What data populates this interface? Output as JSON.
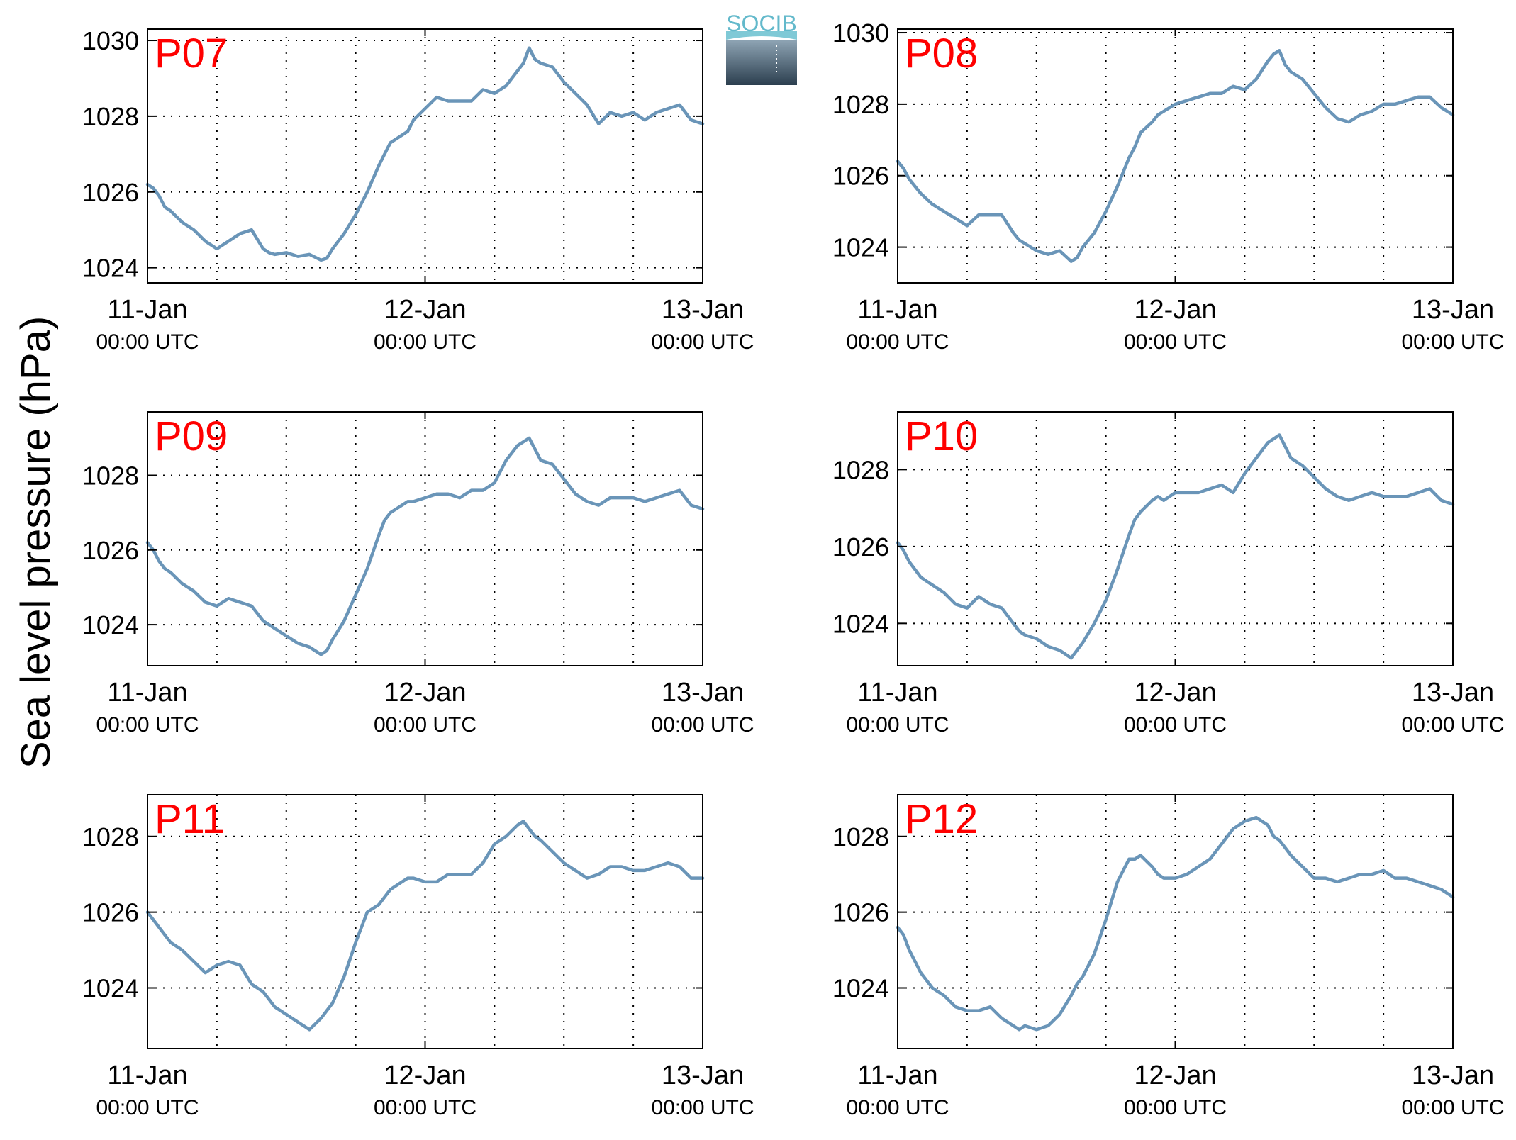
{
  "figure": {
    "ylabel": "Sea level pressure (hPa)",
    "logo_text": "SOCIB",
    "line_color": "#6a95b8",
    "label_color": "#ff0000"
  },
  "chart_data": [
    {
      "type": "line",
      "name": "P07",
      "x_ticks": [
        {
          "day": "11-Jan",
          "time": "00:00 UTC"
        },
        {
          "day": "12-Jan",
          "time": "00:00 UTC"
        },
        {
          "day": "13-Jan",
          "time": "00:00 UTC"
        }
      ],
      "xlim": [
        0,
        48
      ],
      "ylim": [
        1023.6,
        1030.3
      ],
      "y_ticks": [
        1024,
        1026,
        1028,
        1030
      ],
      "grid": true,
      "x": [
        0,
        0.5,
        1,
        1.5,
        2,
        3,
        4,
        5,
        6,
        7,
        8,
        9,
        10,
        10.5,
        11,
        12,
        13,
        14,
        15,
        15.5,
        16,
        17,
        18,
        19,
        20,
        20.5,
        21,
        22,
        22.5,
        23,
        24,
        25,
        26,
        27,
        28,
        29,
        30,
        31,
        32,
        32.5,
        33,
        33.5,
        34,
        35,
        36,
        37,
        38,
        39,
        40,
        41,
        42,
        43,
        44,
        45,
        46,
        47,
        48
      ],
      "y": [
        1026.2,
        1026.1,
        1025.9,
        1025.6,
        1025.5,
        1025.2,
        1025.0,
        1024.7,
        1024.5,
        1024.7,
        1024.9,
        1025.0,
        1024.5,
        1024.4,
        1024.35,
        1024.4,
        1024.3,
        1024.35,
        1024.2,
        1024.25,
        1024.5,
        1024.9,
        1025.4,
        1026.0,
        1026.7,
        1027.0,
        1027.3,
        1027.5,
        1027.6,
        1027.9,
        1028.2,
        1028.5,
        1028.4,
        1028.4,
        1028.4,
        1028.7,
        1028.6,
        1028.8,
        1029.2,
        1029.4,
        1029.8,
        1029.5,
        1029.4,
        1029.3,
        1028.9,
        1028.6,
        1028.3,
        1027.8,
        1028.1,
        1028.0,
        1028.1,
        1027.9,
        1028.1,
        1028.2,
        1028.3,
        1027.9,
        1027.8
      ]
    },
    {
      "type": "line",
      "name": "P08",
      "x_ticks": [
        {
          "day": "11-Jan",
          "time": "00:00 UTC"
        },
        {
          "day": "12-Jan",
          "time": "00:00 UTC"
        },
        {
          "day": "13-Jan",
          "time": "00:00 UTC"
        }
      ],
      "xlim": [
        0,
        48
      ],
      "ylim": [
        1023.0,
        1030.1
      ],
      "y_ticks": [
        1024,
        1026,
        1028,
        1030
      ],
      "grid": true,
      "x": [
        0,
        0.5,
        1,
        1.5,
        2,
        3,
        4,
        5,
        6,
        7,
        8,
        9,
        10,
        10.5,
        11,
        12,
        13,
        14,
        15,
        15.5,
        16,
        17,
        18,
        19,
        20,
        20.5,
        21,
        22,
        22.5,
        23,
        24,
        25,
        26,
        27,
        28,
        29,
        30,
        31,
        32,
        32.5,
        33,
        33.5,
        34,
        35,
        36,
        37,
        38,
        39,
        40,
        41,
        42,
        43,
        44,
        45,
        46,
        47,
        48
      ],
      "y": [
        1026.4,
        1026.2,
        1025.9,
        1025.7,
        1025.5,
        1025.2,
        1025.0,
        1024.8,
        1024.6,
        1024.9,
        1024.9,
        1024.9,
        1024.4,
        1024.2,
        1024.1,
        1023.9,
        1023.8,
        1023.9,
        1023.6,
        1023.7,
        1024.0,
        1024.4,
        1025.0,
        1025.7,
        1026.5,
        1026.8,
        1027.2,
        1027.5,
        1027.7,
        1027.8,
        1028.0,
        1028.1,
        1028.2,
        1028.3,
        1028.3,
        1028.5,
        1028.4,
        1028.7,
        1029.2,
        1029.4,
        1029.5,
        1029.1,
        1028.9,
        1028.7,
        1028.3,
        1027.9,
        1027.6,
        1027.5,
        1027.7,
        1027.8,
        1028.0,
        1028.0,
        1028.1,
        1028.2,
        1028.2,
        1027.9,
        1027.7
      ]
    },
    {
      "type": "line",
      "name": "P09",
      "x_ticks": [
        {
          "day": "11-Jan",
          "time": "00:00 UTC"
        },
        {
          "day": "12-Jan",
          "time": "00:00 UTC"
        },
        {
          "day": "13-Jan",
          "time": "00:00 UTC"
        }
      ],
      "xlim": [
        0,
        48
      ],
      "ylim": [
        1022.9,
        1029.7
      ],
      "y_ticks": [
        1024,
        1026,
        1028
      ],
      "grid": true,
      "x": [
        0,
        0.5,
        1,
        1.5,
        2,
        3,
        4,
        5,
        6,
        7,
        8,
        9,
        10,
        10.5,
        11,
        12,
        13,
        14,
        15,
        15.5,
        16,
        17,
        18,
        19,
        20,
        20.5,
        21,
        22,
        22.5,
        23,
        24,
        25,
        26,
        27,
        28,
        29,
        30,
        31,
        32,
        32.5,
        33,
        33.5,
        34,
        35,
        36,
        37,
        38,
        39,
        40,
        41,
        42,
        43,
        44,
        45,
        46,
        47,
        48
      ],
      "y": [
        1026.2,
        1026.0,
        1025.7,
        1025.5,
        1025.4,
        1025.1,
        1024.9,
        1024.6,
        1024.5,
        1024.7,
        1024.6,
        1024.5,
        1024.1,
        1024.0,
        1023.9,
        1023.7,
        1023.5,
        1023.4,
        1023.2,
        1023.3,
        1023.6,
        1024.1,
        1024.8,
        1025.5,
        1026.4,
        1026.8,
        1027.0,
        1027.2,
        1027.3,
        1027.3,
        1027.4,
        1027.5,
        1027.5,
        1027.4,
        1027.6,
        1027.6,
        1027.8,
        1028.4,
        1028.8,
        1028.9,
        1029.0,
        1028.7,
        1028.4,
        1028.3,
        1027.9,
        1027.5,
        1027.3,
        1027.2,
        1027.4,
        1027.4,
        1027.4,
        1027.3,
        1027.4,
        1027.5,
        1027.6,
        1027.2,
        1027.1
      ]
    },
    {
      "type": "line",
      "name": "P10",
      "x_ticks": [
        {
          "day": "11-Jan",
          "time": "00:00 UTC"
        },
        {
          "day": "12-Jan",
          "time": "00:00 UTC"
        },
        {
          "day": "13-Jan",
          "time": "00:00 UTC"
        }
      ],
      "xlim": [
        0,
        48
      ],
      "ylim": [
        1022.9,
        1029.5
      ],
      "y_ticks": [
        1024,
        1026,
        1028
      ],
      "grid": true,
      "x": [
        0,
        0.5,
        1,
        1.5,
        2,
        3,
        4,
        5,
        6,
        7,
        8,
        9,
        10,
        10.5,
        11,
        12,
        13,
        14,
        15,
        15.5,
        16,
        17,
        18,
        19,
        20,
        20.5,
        21,
        22,
        22.5,
        23,
        24,
        25,
        26,
        27,
        28,
        29,
        30,
        31,
        32,
        32.5,
        33,
        33.5,
        34,
        35,
        36,
        37,
        38,
        39,
        40,
        41,
        42,
        43,
        44,
        45,
        46,
        47,
        48
      ],
      "y": [
        1026.1,
        1025.9,
        1025.6,
        1025.4,
        1025.2,
        1025.0,
        1024.8,
        1024.5,
        1024.4,
        1024.7,
        1024.5,
        1024.4,
        1024.0,
        1023.8,
        1023.7,
        1023.6,
        1023.4,
        1023.3,
        1023.1,
        1023.3,
        1023.5,
        1024.0,
        1024.6,
        1025.4,
        1026.3,
        1026.7,
        1026.9,
        1027.2,
        1027.3,
        1027.2,
        1027.4,
        1027.4,
        1027.4,
        1027.5,
        1027.6,
        1027.4,
        1027.9,
        1028.3,
        1028.7,
        1028.8,
        1028.9,
        1028.6,
        1028.3,
        1028.1,
        1027.8,
        1027.5,
        1027.3,
        1027.2,
        1027.3,
        1027.4,
        1027.3,
        1027.3,
        1027.3,
        1027.4,
        1027.5,
        1027.2,
        1027.1
      ]
    },
    {
      "type": "line",
      "name": "P11",
      "x_ticks": [
        {
          "day": "11-Jan",
          "time": "00:00 UTC"
        },
        {
          "day": "12-Jan",
          "time": "00:00 UTC"
        },
        {
          "day": "13-Jan",
          "time": "00:00 UTC"
        }
      ],
      "xlim": [
        0,
        48
      ],
      "ylim": [
        1022.4,
        1029.1
      ],
      "y_ticks": [
        1024,
        1026,
        1028
      ],
      "grid": true,
      "x": [
        0,
        0.5,
        1,
        1.5,
        2,
        3,
        4,
        5,
        6,
        7,
        8,
        9,
        10,
        10.5,
        11,
        12,
        13,
        14,
        15,
        15.5,
        16,
        17,
        18,
        19,
        20,
        20.5,
        21,
        22,
        22.5,
        23,
        24,
        25,
        26,
        27,
        28,
        29,
        30,
        31,
        32,
        32.5,
        33,
        33.5,
        34,
        35,
        36,
        37,
        38,
        39,
        40,
        41,
        42,
        43,
        44,
        45,
        46,
        47,
        48
      ],
      "y": [
        1026.0,
        1025.8,
        1025.6,
        1025.4,
        1025.2,
        1025.0,
        1024.7,
        1024.4,
        1024.6,
        1024.7,
        1024.6,
        1024.1,
        1023.9,
        1023.7,
        1023.5,
        1023.3,
        1023.1,
        1022.9,
        1023.2,
        1023.4,
        1023.6,
        1024.3,
        1025.2,
        1026.0,
        1026.2,
        1026.4,
        1026.6,
        1026.8,
        1026.9,
        1026.9,
        1026.8,
        1026.8,
        1027.0,
        1027.0,
        1027.0,
        1027.3,
        1027.8,
        1028.0,
        1028.3,
        1028.4,
        1028.2,
        1028.0,
        1027.9,
        1027.6,
        1027.3,
        1027.1,
        1026.9,
        1027.0,
        1027.2,
        1027.2,
        1027.1,
        1027.1,
        1027.2,
        1027.3,
        1027.2,
        1026.9,
        1026.9
      ]
    },
    {
      "type": "line",
      "name": "P12",
      "x_ticks": [
        {
          "day": "11-Jan",
          "time": "00:00 UTC"
        },
        {
          "day": "12-Jan",
          "time": "00:00 UTC"
        },
        {
          "day": "13-Jan",
          "time": "00:00 UTC"
        }
      ],
      "xlim": [
        0,
        48
      ],
      "ylim": [
        1022.4,
        1029.1
      ],
      "y_ticks": [
        1024,
        1026,
        1028
      ],
      "grid": true,
      "x": [
        0,
        0.5,
        1,
        1.5,
        2,
        3,
        4,
        5,
        6,
        7,
        8,
        9,
        10,
        10.5,
        11,
        12,
        13,
        14,
        15,
        15.5,
        16,
        17,
        18,
        19,
        20,
        20.5,
        21,
        22,
        22.5,
        23,
        24,
        25,
        26,
        27,
        28,
        29,
        30,
        31,
        32,
        32.5,
        33,
        33.5,
        34,
        35,
        36,
        37,
        38,
        39,
        40,
        41,
        42,
        43,
        44,
        45,
        46,
        47,
        48
      ],
      "y": [
        1025.6,
        1025.4,
        1025.0,
        1024.7,
        1024.4,
        1024.0,
        1023.8,
        1023.5,
        1023.4,
        1023.4,
        1023.5,
        1023.2,
        1023.0,
        1022.9,
        1023.0,
        1022.9,
        1023.0,
        1023.3,
        1023.8,
        1024.1,
        1024.3,
        1024.9,
        1025.8,
        1026.8,
        1027.4,
        1027.4,
        1027.5,
        1027.2,
        1027.0,
        1026.9,
        1026.9,
        1027.0,
        1027.2,
        1027.4,
        1027.8,
        1028.2,
        1028.4,
        1028.5,
        1028.3,
        1028.0,
        1027.9,
        1027.7,
        1027.5,
        1027.2,
        1026.9,
        1026.9,
        1026.8,
        1026.9,
        1027.0,
        1027.0,
        1027.1,
        1026.9,
        1026.9,
        1026.8,
        1026.7,
        1026.6,
        1026.4
      ]
    }
  ]
}
